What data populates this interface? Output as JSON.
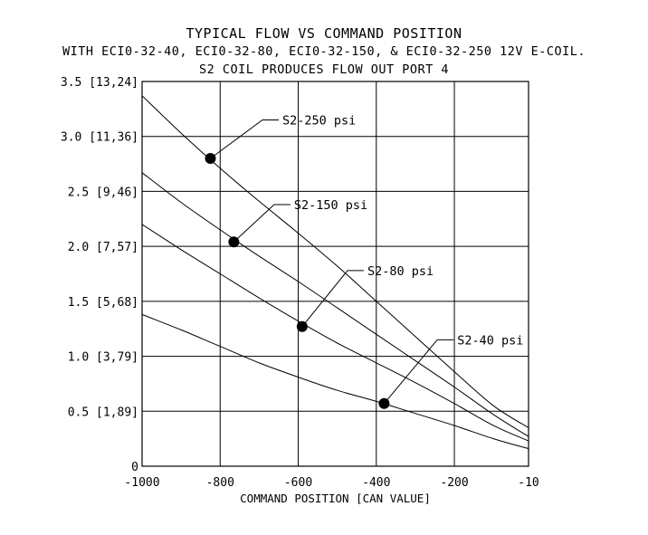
{
  "chart_data": {
    "type": "line",
    "title": "TYPICAL FLOW VS COMMAND POSITION",
    "subtitle": "WITH ECI0-32-40, ECI0-32-80, ECI0-32-150, & ECI0-32-250 12V E-COIL.",
    "subtitle2": "S2 COIL PRODUCES FLOW OUT PORT 4",
    "xlabel": "COMMAND POSITION [CAN VALUE]",
    "ylabel": "",
    "xlim": [
      -1000,
      -10
    ],
    "ylim": [
      0,
      3.5
    ],
    "x_ticks": [
      -1000,
      -800,
      -600,
      -400,
      -200,
      -10
    ],
    "x_tick_labels": [
      "-1000",
      "-800",
      "-600",
      "-400",
      "-200",
      "-10"
    ],
    "y_ticks": [
      0,
      0.5,
      1.0,
      1.5,
      2.0,
      2.5,
      3.0,
      3.5
    ],
    "y_tick_labels": [
      "0",
      "0.5 [1,89]",
      "1.0 [3,79]",
      "1.5 [5,68]",
      "2.0 [7,57]",
      "2.5 [9,46]",
      "3.0 [11,36]",
      "3.5 [13,24]"
    ],
    "grid": true,
    "series": [
      {
        "name": "S2-250 psi",
        "x": [
          -1000,
          -900,
          -800,
          -700,
          -600,
          -500,
          -400,
          -300,
          -200,
          -100,
          -10
        ],
        "y": [
          3.37,
          3.03,
          2.71,
          2.41,
          2.12,
          1.82,
          1.5,
          1.18,
          0.86,
          0.55,
          0.35
        ],
        "marker": [
          -825,
          2.8
        ],
        "label_xy": [
          -650,
          3.15
        ]
      },
      {
        "name": "S2-150 psi",
        "x": [
          -1000,
          -900,
          -800,
          -700,
          -600,
          -500,
          -400,
          -300,
          -200,
          -100,
          -10
        ],
        "y": [
          2.67,
          2.4,
          2.15,
          1.91,
          1.68,
          1.44,
          1.2,
          0.96,
          0.72,
          0.47,
          0.27
        ],
        "marker": [
          -765,
          2.04
        ],
        "label_xy": [
          -620,
          2.38
        ]
      },
      {
        "name": "S2-80 psi",
        "x": [
          -1000,
          -900,
          -800,
          -700,
          -600,
          -500,
          -400,
          -300,
          -200,
          -100,
          -10
        ],
        "y": [
          2.2,
          1.97,
          1.75,
          1.53,
          1.32,
          1.12,
          0.94,
          0.76,
          0.57,
          0.37,
          0.23
        ],
        "marker": [
          -590,
          1.27
        ],
        "label_xy": [
          -432,
          1.78
        ]
      },
      {
        "name": "S2-40 psi",
        "x": [
          -1000,
          -900,
          -800,
          -700,
          -600,
          -500,
          -400,
          -300,
          -200,
          -100,
          -10
        ],
        "y": [
          1.38,
          1.24,
          1.09,
          0.94,
          0.81,
          0.69,
          0.59,
          0.48,
          0.37,
          0.25,
          0.16
        ],
        "marker": [
          -380,
          0.57
        ],
        "label_xy": [
          -202,
          1.15
        ]
      }
    ]
  }
}
